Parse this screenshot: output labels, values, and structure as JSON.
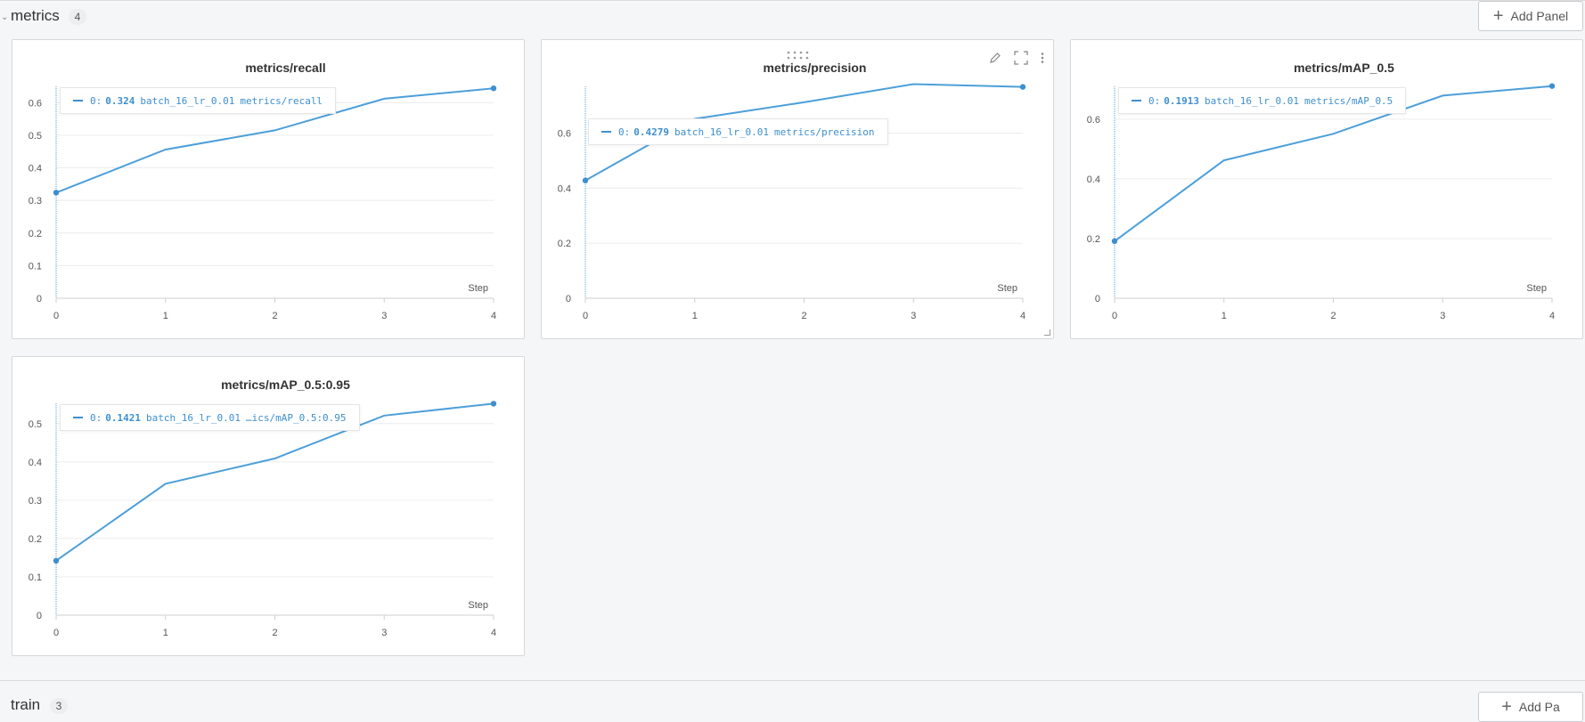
{
  "section": {
    "title": "metrics",
    "count": "4",
    "add_panel_label": "Add Panel"
  },
  "section2": {
    "title": "train",
    "count": "3",
    "add_panel_label": "Add Pa"
  },
  "panels": [
    {
      "title": "metrics/recall",
      "tooltip": {
        "index": "0:",
        "value": "0.324",
        "run": "batch_16_lr_0.01",
        "metric": "metrics/recall"
      },
      "chart_data": {
        "type": "line",
        "title": "metrics/recall",
        "xlabel": "Step",
        "x": [
          0,
          1,
          2,
          3,
          4
        ],
        "series": [
          {
            "values": [
              0.324,
              0.456,
              0.515,
              0.612,
              0.644
            ]
          }
        ],
        "xlim": [
          0,
          4
        ],
        "ylim": [
          0,
          0.65
        ],
        "yticks": [
          0,
          0.1,
          0.2,
          0.3,
          0.4,
          0.5,
          0.6
        ],
        "yticklabels": [
          "0",
          "0.1",
          "0.2",
          "0.3",
          "0.4",
          "0.5",
          "0.6"
        ],
        "xticks": [
          "0",
          "1",
          "2",
          "3",
          "4"
        ]
      }
    },
    {
      "title": "metrics/precision",
      "tooltip": {
        "index": "0:",
        "value": "0.4279",
        "run": "batch_16_lr_0.01",
        "metric": "metrics/precision"
      },
      "chart_data": {
        "type": "line",
        "title": "metrics/precision",
        "xlabel": "Step",
        "x": [
          0,
          1,
          2,
          3,
          4
        ],
        "series": [
          {
            "values": [
              0.4279,
              0.652,
              0.712,
              0.778,
              0.768
            ]
          }
        ],
        "xlim": [
          0,
          4
        ],
        "ylim": [
          0,
          0.77
        ],
        "yticks": [
          0,
          0.2,
          0.4,
          0.6
        ],
        "yticklabels": [
          "0",
          "0.2",
          "0.4",
          "0.6"
        ],
        "xticks": [
          "0",
          "1",
          "2",
          "3",
          "4"
        ]
      }
    },
    {
      "title": "metrics/mAP_0.5",
      "tooltip": {
        "index": "0:",
        "value": "0.1913",
        "run": "batch_16_lr_0.01",
        "metric": "metrics/mAP_0.5"
      },
      "chart_data": {
        "type": "line",
        "title": "metrics/mAP_0.5",
        "xlabel": "Step",
        "x": [
          0,
          1,
          2,
          3,
          4
        ],
        "series": [
          {
            "values": [
              0.1913,
              0.462,
              0.551,
              0.679,
              0.711
            ]
          }
        ],
        "xlim": [
          0,
          4
        ],
        "ylim": [
          0,
          0.71
        ],
        "yticks": [
          0,
          0.2,
          0.4,
          0.6
        ],
        "yticklabels": [
          "0",
          "0.2",
          "0.4",
          "0.6"
        ],
        "xticks": [
          "0",
          "1",
          "2",
          "3",
          "4"
        ]
      }
    },
    {
      "title": "metrics/mAP_0.5:0.95",
      "tooltip": {
        "index": "0:",
        "value": "0.1421",
        "run": "batch_16_lr_0.01",
        "metric": "…ics/mAP_0.5:0.95"
      },
      "chart_data": {
        "type": "line",
        "title": "metrics/mAP_0.5:0.95",
        "xlabel": "Step",
        "x": [
          0,
          1,
          2,
          3,
          4
        ],
        "series": [
          {
            "values": [
              0.1421,
              0.343,
              0.409,
              0.521,
              0.552
            ]
          }
        ],
        "xlim": [
          0,
          4
        ],
        "ylim": [
          0,
          0.553
        ],
        "yticks": [
          0,
          0.1,
          0.2,
          0.3,
          0.4,
          0.5
        ],
        "yticklabels": [
          "0",
          "0.1",
          "0.2",
          "0.3",
          "0.4",
          "0.5"
        ],
        "xticks": [
          "0",
          "1",
          "2",
          "3",
          "4"
        ]
      }
    }
  ],
  "icons": {
    "edit": "pencil-icon",
    "fullscreen": "fullscreen-icon",
    "menu": "kebab-menu-icon",
    "drag": "drag-handle-icon",
    "add": "plus-icon"
  }
}
